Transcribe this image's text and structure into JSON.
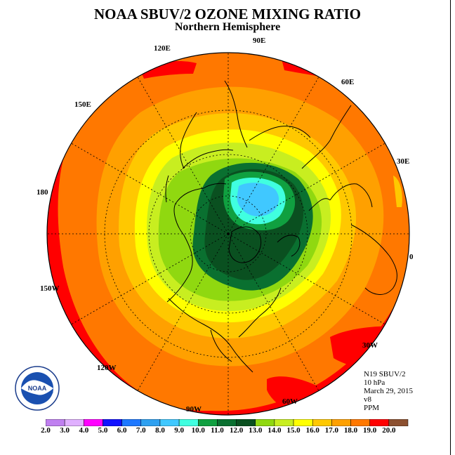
{
  "title": "NOAA SBUV/2 OZONE MIXING RATIO",
  "subtitle": "Northern Hemisphere",
  "longitude_labels": [
    "90E",
    "60E",
    "30E",
    "0",
    "30W",
    "60W",
    "90W",
    "120W",
    "150W",
    "180",
    "150E",
    "120E"
  ],
  "info": {
    "instrument": "N19 SBUV/2",
    "level": "10 hPa",
    "date": "March 29, 2015",
    "version": "v8",
    "unit": "PPM"
  },
  "logo_text": "NOAA",
  "colorbar": {
    "tick_labels": [
      "2.0",
      "3.0",
      "4.0",
      "5.0",
      "6.0",
      "7.0",
      "8.0",
      "9.0",
      "10.0",
      "11.0",
      "12.0",
      "13.0",
      "14.0",
      "15.0",
      "16.0",
      "17.0",
      "18.0",
      "19.0",
      "20.0"
    ],
    "colors": [
      "#c080f0",
      "#e0b0ff",
      "#ff00ff",
      "#1010ff",
      "#1e78ff",
      "#2ea0f0",
      "#40c8ff",
      "#40ffe0",
      "#10a040",
      "#0a7030",
      "#0a5020",
      "#90d810",
      "#c8ee20",
      "#ffff00",
      "#ffc800",
      "#ffa000",
      "#ff7800",
      "#ff0000",
      "#8c5030"
    ]
  }
}
